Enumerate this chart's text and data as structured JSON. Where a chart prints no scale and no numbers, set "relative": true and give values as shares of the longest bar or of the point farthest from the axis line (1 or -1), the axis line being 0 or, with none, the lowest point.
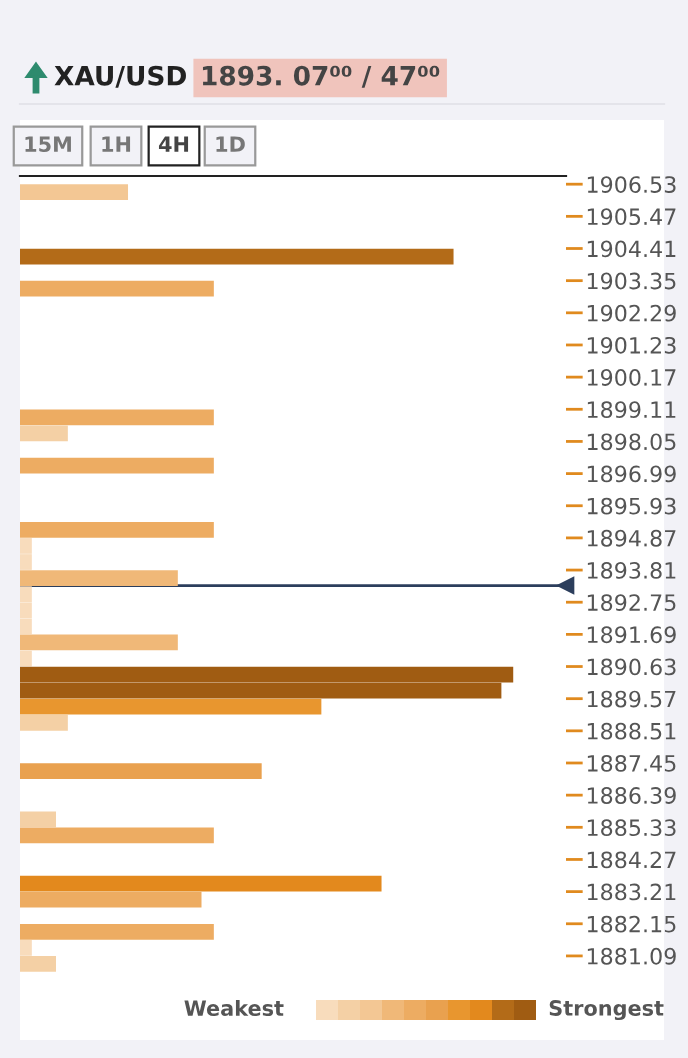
{
  "chart_data": {
    "type": "bar",
    "orientation": "horizontal",
    "relative": true,
    "title": "XAU/USD",
    "subtitle": "1893. 07⁰⁰ / 47⁰⁰",
    "x": [
      1906.265,
      1905.735,
      1905.205,
      1904.675,
      1904.145,
      1903.615,
      1903.085,
      1902.555,
      1902.025,
      1901.495,
      1900.965,
      1900.435,
      1899.905,
      1899.375,
      1898.845,
      1898.315,
      1897.785,
      1897.255,
      1896.725,
      1896.195,
      1895.665,
      1895.135,
      1894.605,
      1894.075,
      1893.545,
      1893.015,
      1892.485,
      1891.955,
      1891.425,
      1890.895,
      1890.365,
      1889.835,
      1889.305,
      1888.775,
      1888.245,
      1887.715,
      1887.185,
      1886.655,
      1886.125,
      1885.595,
      1885.065,
      1884.535,
      1884.005,
      1883.475,
      1882.945,
      1882.415,
      1881.885,
      1881.355,
      1880.825
    ],
    "values": [
      0.219,
      null,
      null,
      null,
      0.879,
      null,
      0.393,
      null,
      null,
      null,
      null,
      null,
      null,
      null,
      0.393,
      0.097,
      null,
      0.393,
      null,
      null,
      null,
      0.393,
      0.024,
      0.024,
      0.32,
      0.024,
      0.024,
      0.024,
      0.32,
      0.024,
      1,
      0.976,
      0.611,
      0.097,
      null,
      null,
      0.49,
      null,
      null,
      0.073,
      0.393,
      null,
      null,
      0.733,
      0.368,
      null,
      0.393,
      0.024,
      0.073
    ],
    "colors": [
      "#f3c794",
      null,
      null,
      null,
      "#b36b18",
      null,
      "#edac62",
      null,
      null,
      null,
      null,
      null,
      null,
      null,
      "#edac62",
      "#f4d0a5",
      null,
      "#edac62",
      null,
      null,
      null,
      "#edac62",
      "#f8dcbc",
      "#f8dcbc",
      "#f0b878",
      "#f8dcbc",
      "#f8dcbc",
      "#f8dcbc",
      "#f0b878",
      "#f8dcbc",
      "#a05c12",
      "#a05c12",
      "#e8962f",
      "#f4d0a5",
      null,
      null,
      "#e9a14f",
      null,
      null,
      "#f4d0a5",
      "#edac62",
      null,
      null,
      "#e3891d",
      "#edac62",
      null,
      "#edac62",
      "#f8dcbc",
      "#f4d0a5"
    ],
    "ylim": [
      1880.56,
      1906.8
    ],
    "yticks": [
      1906.53,
      1905.47,
      1904.41,
      1903.35,
      1902.29,
      1901.23,
      1900.17,
      1899.11,
      1898.05,
      1896.99,
      1895.93,
      1894.87,
      1893.81,
      1892.75,
      1891.69,
      1890.63,
      1889.57,
      1888.51,
      1887.45,
      1886.39,
      1885.33,
      1884.27,
      1883.21,
      1882.15,
      1881.09
    ],
    "ref_lines": [
      {
        "axis": "y",
        "value": 1893.3,
        "color": "#2c3e5c"
      }
    ],
    "annotations": [
      "15M",
      "1H",
      "4H",
      "1D",
      "Weakest",
      "Strongest"
    ]
  }
}
